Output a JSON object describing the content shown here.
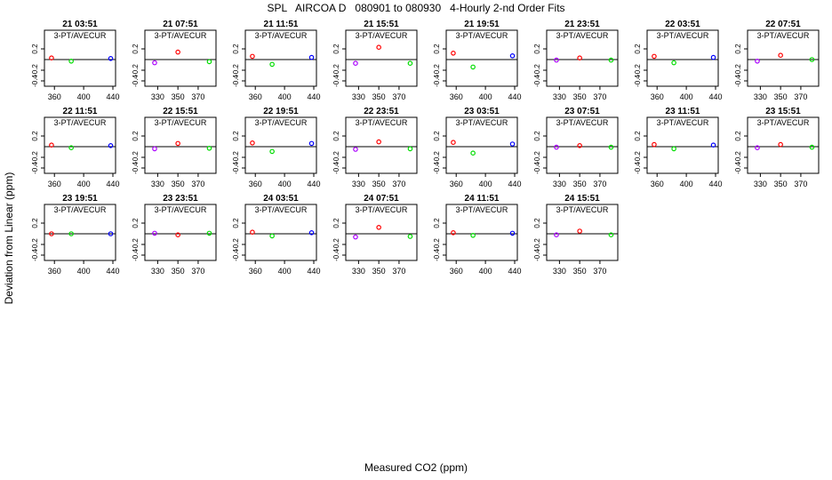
{
  "page": {
    "title": "SPL   AIRCOA D   080901 to 080930   4-Hourly 2-nd Order Fits",
    "xlabel": "Measured CO2 (ppm)",
    "ylabel": "Deviation from Linear (ppm)"
  },
  "colors": {
    "red": "#ff0000",
    "green": "#00dd00",
    "blue": "#0000ff",
    "purple": "#aa00ff"
  },
  "chart_data": {
    "type": "scatter",
    "ylim": [
      -0.5,
      0.4
    ],
    "yticks": [
      -0.4,
      -0.2,
      0.2
    ],
    "panel_label": "3-PT/AVECUR",
    "set_a": {
      "xlim": [
        350,
        440
      ],
      "xticks": [
        360,
        400,
        440
      ]
    },
    "set_b": {
      "xlim": [
        320,
        385
      ],
      "xticks": [
        330,
        350,
        370
      ]
    },
    "panels": [
      {
        "title": "21 03:51",
        "set": "a",
        "points": [
          [
            356,
            0.03,
            "red"
          ],
          [
            383,
            -0.03,
            "green"
          ],
          [
            437,
            0.02,
            "blue"
          ]
        ]
      },
      {
        "title": "21 07:51",
        "set": "b",
        "points": [
          [
            327,
            -0.06,
            "purple"
          ],
          [
            350,
            0.14,
            "red"
          ],
          [
            381,
            -0.04,
            "green"
          ]
        ]
      },
      {
        "title": "21 11:51",
        "set": "a",
        "points": [
          [
            356,
            0.06,
            "red"
          ],
          [
            383,
            -0.09,
            "green"
          ],
          [
            437,
            0.04,
            "blue"
          ]
        ]
      },
      {
        "title": "21 15:51",
        "set": "b",
        "points": [
          [
            327,
            -0.07,
            "purple"
          ],
          [
            350,
            0.23,
            "red"
          ],
          [
            381,
            -0.07,
            "green"
          ]
        ]
      },
      {
        "title": "21 19:51",
        "set": "a",
        "points": [
          [
            356,
            0.12,
            "red"
          ],
          [
            383,
            -0.14,
            "green"
          ],
          [
            437,
            0.07,
            "blue"
          ]
        ]
      },
      {
        "title": "21 23:51",
        "set": "b",
        "points": [
          [
            327,
            -0.01,
            "purple"
          ],
          [
            350,
            0.03,
            "red"
          ],
          [
            381,
            -0.01,
            "green"
          ]
        ]
      },
      {
        "title": "22 03:51",
        "set": "a",
        "points": [
          [
            356,
            0.06,
            "red"
          ],
          [
            383,
            -0.06,
            "green"
          ],
          [
            437,
            0.04,
            "blue"
          ]
        ]
      },
      {
        "title": "22 07:51",
        "set": "b",
        "points": [
          [
            327,
            -0.03,
            "purple"
          ],
          [
            350,
            0.08,
            "red"
          ],
          [
            381,
            0.0,
            "green"
          ]
        ]
      },
      {
        "title": "22 11:51",
        "set": "a",
        "points": [
          [
            356,
            0.03,
            "red"
          ],
          [
            383,
            -0.02,
            "green"
          ],
          [
            437,
            0.02,
            "blue"
          ]
        ]
      },
      {
        "title": "22 15:51",
        "set": "b",
        "points": [
          [
            327,
            -0.04,
            "purple"
          ],
          [
            350,
            0.06,
            "red"
          ],
          [
            381,
            -0.03,
            "green"
          ]
        ]
      },
      {
        "title": "22 19:51",
        "set": "a",
        "points": [
          [
            356,
            0.07,
            "red"
          ],
          [
            383,
            -0.09,
            "green"
          ],
          [
            437,
            0.06,
            "blue"
          ]
        ]
      },
      {
        "title": "22 23:51",
        "set": "b",
        "points": [
          [
            327,
            -0.05,
            "purple"
          ],
          [
            350,
            0.09,
            "red"
          ],
          [
            381,
            -0.04,
            "green"
          ]
        ]
      },
      {
        "title": "23 03:51",
        "set": "a",
        "points": [
          [
            356,
            0.08,
            "red"
          ],
          [
            383,
            -0.12,
            "green"
          ],
          [
            437,
            0.05,
            "blue"
          ]
        ]
      },
      {
        "title": "23 07:51",
        "set": "b",
        "points": [
          [
            327,
            -0.01,
            "purple"
          ],
          [
            350,
            0.02,
            "red"
          ],
          [
            381,
            -0.01,
            "green"
          ]
        ]
      },
      {
        "title": "23 11:51",
        "set": "a",
        "points": [
          [
            356,
            0.04,
            "red"
          ],
          [
            383,
            -0.04,
            "green"
          ],
          [
            437,
            0.03,
            "blue"
          ]
        ]
      },
      {
        "title": "23 15:51",
        "set": "b",
        "points": [
          [
            327,
            -0.02,
            "purple"
          ],
          [
            350,
            0.04,
            "red"
          ],
          [
            381,
            -0.01,
            "green"
          ]
        ]
      },
      {
        "title": "23 19:51",
        "set": "a",
        "points": [
          [
            356,
            0.0,
            "red"
          ],
          [
            383,
            0.0,
            "green"
          ],
          [
            437,
            0.0,
            "blue"
          ]
        ]
      },
      {
        "title": "23 23:51",
        "set": "b",
        "points": [
          [
            327,
            0.01,
            "purple"
          ],
          [
            350,
            -0.02,
            "red"
          ],
          [
            381,
            0.01,
            "green"
          ]
        ]
      },
      {
        "title": "24 03:51",
        "set": "a",
        "points": [
          [
            356,
            0.03,
            "red"
          ],
          [
            383,
            -0.04,
            "green"
          ],
          [
            437,
            0.02,
            "blue"
          ]
        ]
      },
      {
        "title": "24 07:51",
        "set": "b",
        "points": [
          [
            327,
            -0.06,
            "purple"
          ],
          [
            350,
            0.12,
            "red"
          ],
          [
            381,
            -0.05,
            "green"
          ]
        ]
      },
      {
        "title": "24 11:51",
        "set": "a",
        "points": [
          [
            356,
            0.02,
            "red"
          ],
          [
            383,
            -0.03,
            "green"
          ],
          [
            437,
            0.01,
            "blue"
          ]
        ]
      },
      {
        "title": "24 15:51",
        "set": "b",
        "points": [
          [
            327,
            -0.02,
            "purple"
          ],
          [
            350,
            0.05,
            "red"
          ],
          [
            381,
            -0.02,
            "green"
          ]
        ]
      }
    ]
  }
}
